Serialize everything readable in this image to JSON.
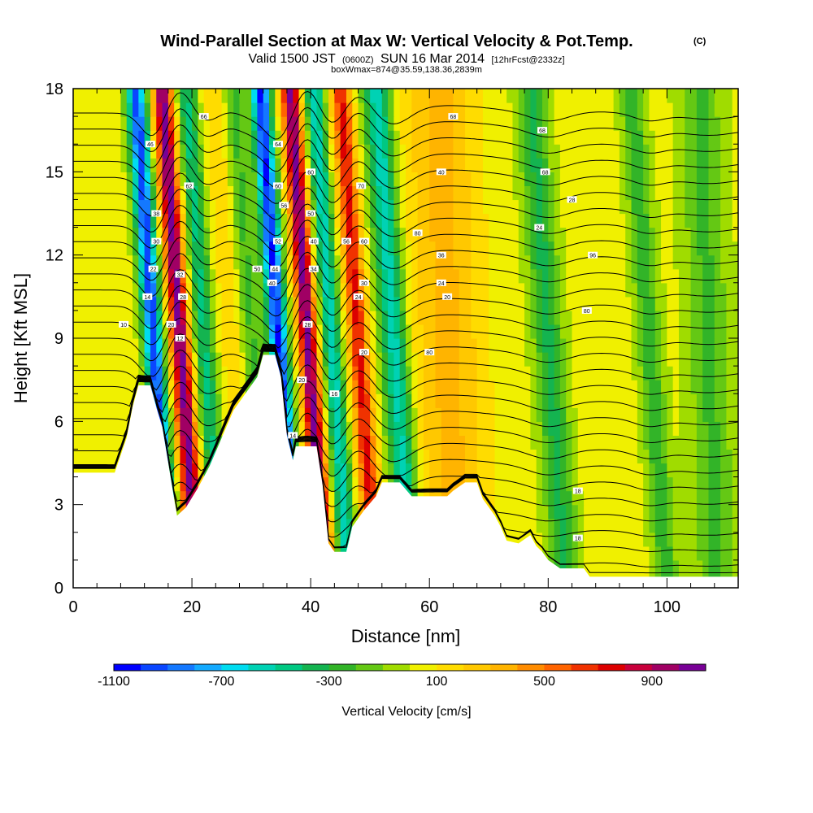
{
  "title": {
    "main": "Wind-Parallel Section at Max W: Vertical Velocity & Pot.Temp.",
    "copyright": "(C)",
    "valid_prefix": "Valid 1500 JST",
    "valid_zulu": "(0600Z)",
    "valid_date": "SUN 16 Mar 2014",
    "forecast": "[12hrFcst@2332z]",
    "box": "boxWmax=874@35.59,138.36,2839m"
  },
  "chart_data": {
    "type": "heatmap",
    "xlabel": "Distance [nm]",
    "ylabel": "Height [Kft MSL]",
    "xlim": [
      0,
      112
    ],
    "ylim": [
      0,
      18
    ],
    "x_ticks": [
      0,
      20,
      40,
      60,
      80,
      100
    ],
    "x_tick_labels": [
      "0",
      "20",
      "40",
      "60",
      "80",
      "100"
    ],
    "y_ticks": [
      0,
      3,
      6,
      9,
      12,
      15,
      18
    ],
    "y_tick_labels": [
      "0",
      "3",
      "6",
      "9",
      "12",
      "15",
      "18"
    ],
    "colorbar": {
      "label": "Vertical Velocity [cm/s]",
      "range": [
        -1100,
        1100
      ],
      "step": 100,
      "tick_values": [
        -1100,
        -700,
        -300,
        100,
        500,
        900
      ],
      "tick_labels": [
        "-1100",
        "-700",
        "-300",
        "100",
        "500",
        "900"
      ],
      "colors": [
        "#0000ff",
        "#0a46ff",
        "#1478ff",
        "#14aaff",
        "#00dcf0",
        "#00d2b4",
        "#00c882",
        "#14b450",
        "#32b428",
        "#64c814",
        "#a0dc00",
        "#f0f000",
        "#ffdc00",
        "#ffc800",
        "#ffb400",
        "#ff8c00",
        "#ff6400",
        "#f03200",
        "#dc0000",
        "#c8003c",
        "#a00064",
        "#780096"
      ]
    },
    "terrain": [
      [
        0,
        4.15
      ],
      [
        7,
        4.15
      ],
      [
        9,
        5.4
      ],
      [
        10,
        6.5
      ],
      [
        11,
        7.3
      ],
      [
        13,
        7.3
      ],
      [
        14,
        6.5
      ],
      [
        15,
        5.8
      ],
      [
        16,
        4.5
      ],
      [
        17,
        3.2
      ],
      [
        17.5,
        2.6
      ],
      [
        19,
        2.9
      ],
      [
        21,
        3.6
      ],
      [
        23,
        4.4
      ],
      [
        25,
        5.4
      ],
      [
        27,
        6.4
      ],
      [
        29,
        7.0
      ],
      [
        31,
        7.6
      ],
      [
        32,
        8.4
      ],
      [
        34,
        8.4
      ],
      [
        35,
        7.6
      ],
      [
        36,
        5.5
      ],
      [
        37,
        4.6
      ],
      [
        37.5,
        5.1
      ],
      [
        41,
        5.1
      ],
      [
        42,
        3.7
      ],
      [
        43,
        1.6
      ],
      [
        44,
        1.3
      ],
      [
        46,
        1.3
      ],
      [
        47,
        2.2
      ],
      [
        49,
        2.8
      ],
      [
        51,
        3.3
      ],
      [
        52,
        3.8
      ],
      [
        55,
        3.8
      ],
      [
        57,
        3.3
      ],
      [
        63,
        3.3
      ],
      [
        64,
        3.5
      ],
      [
        66,
        3.8
      ],
      [
        68,
        3.8
      ],
      [
        69,
        3.2
      ],
      [
        71,
        2.6
      ],
      [
        72,
        2.2
      ],
      [
        73,
        1.7
      ],
      [
        75,
        1.6
      ],
      [
        77,
        1.9
      ],
      [
        78,
        1.5
      ],
      [
        79,
        1.3
      ],
      [
        80,
        1.0
      ],
      [
        82,
        0.7
      ],
      [
        86,
        0.7
      ],
      [
        87,
        0.4
      ],
      [
        112,
        0.4
      ]
    ],
    "velocity_bands": [
      {
        "x": 13.5,
        "amplitude": -1000,
        "width": 1.6
      },
      {
        "x": 18.0,
        "amplitude": 1000,
        "width": 1.7
      },
      {
        "x": 22.0,
        "amplitude": -450,
        "width": 1.8
      },
      {
        "x": 26.5,
        "amplitude": 150,
        "width": 2.0
      },
      {
        "x": 30.0,
        "amplitude": -250,
        "width": 1.8
      },
      {
        "x": 34.5,
        "amplitude": -1050,
        "width": 1.6
      },
      {
        "x": 39.5,
        "amplitude": 1000,
        "width": 1.6
      },
      {
        "x": 43.5,
        "amplitude": -600,
        "width": 1.6
      },
      {
        "x": 48.0,
        "amplitude": 700,
        "width": 1.7
      },
      {
        "x": 54.0,
        "amplitude": -600,
        "width": 2.2
      },
      {
        "x": 63.0,
        "amplitude": 300,
        "width": 6.0
      },
      {
        "x": 80.0,
        "amplitude": -350,
        "width": 2.5
      },
      {
        "x": 88.0,
        "amplitude": 50,
        "width": 3.0
      },
      {
        "x": 97.0,
        "amplitude": -300,
        "width": 2.0
      },
      {
        "x": 107.0,
        "amplitude": -250,
        "width": 3.5
      }
    ],
    "band_tilt": 0.55,
    "background_velocity": 30,
    "isentropes": {
      "count": 30,
      "base_height": 0.3,
      "spacing": 0.58
    },
    "contour_labels": [
      {
        "x": 13.0,
        "y": 16.0,
        "text": "46"
      },
      {
        "x": 14.0,
        "y": 13.5,
        "text": "38"
      },
      {
        "x": 14.0,
        "y": 12.5,
        "text": "30"
      },
      {
        "x": 13.5,
        "y": 11.5,
        "text": "22"
      },
      {
        "x": 12.5,
        "y": 10.5,
        "text": "14"
      },
      {
        "x": 8.5,
        "y": 9.5,
        "text": "10"
      },
      {
        "x": 18.0,
        "y": 11.3,
        "text": "32"
      },
      {
        "x": 18.5,
        "y": 10.5,
        "text": "28"
      },
      {
        "x": 16.5,
        "y": 9.5,
        "text": "20"
      },
      {
        "x": 18.0,
        "y": 9.0,
        "text": "12"
      },
      {
        "x": 19.5,
        "y": 14.5,
        "text": "62"
      },
      {
        "x": 22.0,
        "y": 17.0,
        "text": "66"
      },
      {
        "x": 31.0,
        "y": 11.5,
        "text": "50"
      },
      {
        "x": 34.5,
        "y": 16.0,
        "text": "64"
      },
      {
        "x": 34.5,
        "y": 14.5,
        "text": "60"
      },
      {
        "x": 35.5,
        "y": 13.8,
        "text": "56"
      },
      {
        "x": 34.5,
        "y": 12.5,
        "text": "52"
      },
      {
        "x": 34.0,
        "y": 11.5,
        "text": "44"
      },
      {
        "x": 33.5,
        "y": 11.0,
        "text": "40"
      },
      {
        "x": 40.0,
        "y": 15.0,
        "text": "60"
      },
      {
        "x": 40.0,
        "y": 13.5,
        "text": "50"
      },
      {
        "x": 40.5,
        "y": 12.5,
        "text": "40"
      },
      {
        "x": 40.5,
        "y": 11.5,
        "text": "34"
      },
      {
        "x": 39.5,
        "y": 9.5,
        "text": "28"
      },
      {
        "x": 38.5,
        "y": 7.5,
        "text": "20"
      },
      {
        "x": 37.0,
        "y": 5.5,
        "text": "14"
      },
      {
        "x": 44.0,
        "y": 7.0,
        "text": "16"
      },
      {
        "x": 48.5,
        "y": 14.5,
        "text": "70"
      },
      {
        "x": 46.0,
        "y": 12.5,
        "text": "56"
      },
      {
        "x": 49.0,
        "y": 12.5,
        "text": "60"
      },
      {
        "x": 49.0,
        "y": 11.0,
        "text": "30"
      },
      {
        "x": 48.0,
        "y": 10.5,
        "text": "24"
      },
      {
        "x": 49.0,
        "y": 8.5,
        "text": "20"
      },
      {
        "x": 58.0,
        "y": 12.8,
        "text": "80"
      },
      {
        "x": 62.0,
        "y": 12.0,
        "text": "36"
      },
      {
        "x": 62.0,
        "y": 11.0,
        "text": "24"
      },
      {
        "x": 63.0,
        "y": 10.5,
        "text": "20"
      },
      {
        "x": 60.0,
        "y": 8.5,
        "text": "80"
      },
      {
        "x": 64.0,
        "y": 17.0,
        "text": "68"
      },
      {
        "x": 62.0,
        "y": 15.0,
        "text": "40"
      },
      {
        "x": 79.0,
        "y": 16.5,
        "text": "68"
      },
      {
        "x": 79.5,
        "y": 15.0,
        "text": "68"
      },
      {
        "x": 84.0,
        "y": 14.0,
        "text": "28"
      },
      {
        "x": 78.5,
        "y": 13.0,
        "text": "24"
      },
      {
        "x": 87.5,
        "y": 12.0,
        "text": "96"
      },
      {
        "x": 86.5,
        "y": 10.0,
        "text": "80"
      },
      {
        "x": 85.0,
        "y": 3.5,
        "text": "18"
      },
      {
        "x": 85.0,
        "y": 1.8,
        "text": "18"
      }
    ]
  }
}
